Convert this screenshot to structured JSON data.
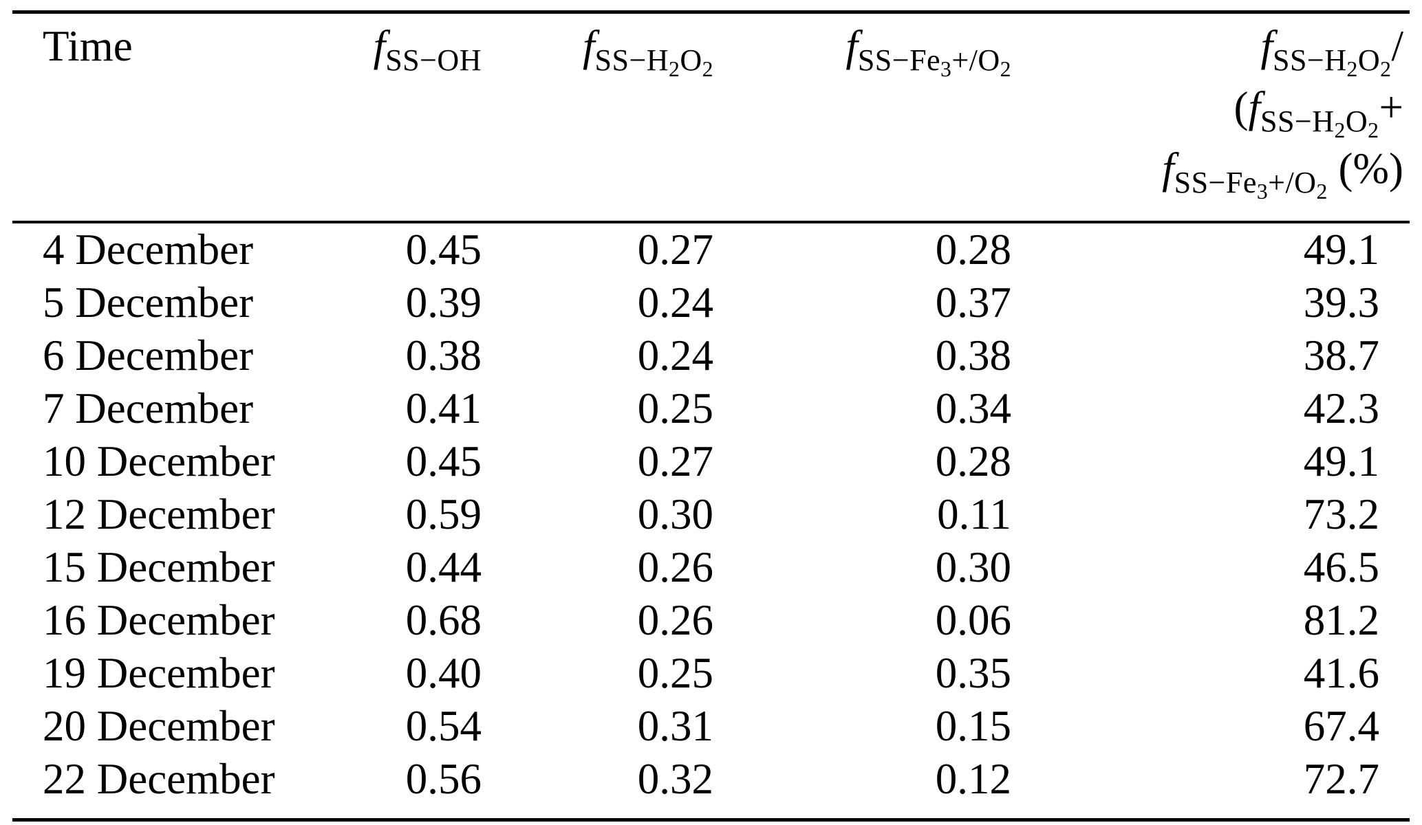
{
  "table": {
    "header": {
      "time": "Time",
      "f_oh": {
        "f": "f",
        "sub": "SS−OH"
      },
      "f_h2o2": {
        "f": "f",
        "sub_a": "SS−H",
        "sub_b": "2",
        "sub_c": "O",
        "sub_d": "2"
      },
      "f_fe": {
        "f": "f",
        "sub_a": "SS−Fe",
        "sub_b": "3",
        "sub_c": "+/O",
        "sub_d": "2"
      },
      "ratio": {
        "line1": {
          "f": "f",
          "sub_a": "SS−H",
          "sub_b": "2",
          "sub_c": "O",
          "sub_d": "2",
          "tail": "/"
        },
        "line2": {
          "lead": "(",
          "f": "f",
          "sub_a": "SS−H",
          "sub_b": "2",
          "sub_c": "O",
          "sub_d": "2",
          "tail": "+"
        },
        "line3": {
          "f": "f",
          "sub_a": "SS−Fe",
          "sub_b": "3",
          "sub_c": "+/O",
          "sub_d": "2",
          "tail": " (%)"
        }
      }
    },
    "rows": [
      {
        "time": "4 December",
        "f_oh": "0.45",
        "f_h2o2": "0.27",
        "f_fe": "0.28",
        "ratio": "49.1"
      },
      {
        "time": "5 December",
        "f_oh": "0.39",
        "f_h2o2": "0.24",
        "f_fe": "0.37",
        "ratio": "39.3"
      },
      {
        "time": "6 December",
        "f_oh": "0.38",
        "f_h2o2": "0.24",
        "f_fe": "0.38",
        "ratio": "38.7"
      },
      {
        "time": "7 December",
        "f_oh": "0.41",
        "f_h2o2": "0.25",
        "f_fe": "0.34",
        "ratio": "42.3"
      },
      {
        "time": "10 December",
        "f_oh": "0.45",
        "f_h2o2": "0.27",
        "f_fe": "0.28",
        "ratio": "49.1"
      },
      {
        "time": "12 December",
        "f_oh": "0.59",
        "f_h2o2": "0.30",
        "f_fe": "0.11",
        "ratio": "73.2"
      },
      {
        "time": "15 December",
        "f_oh": "0.44",
        "f_h2o2": "0.26",
        "f_fe": "0.30",
        "ratio": "46.5"
      },
      {
        "time": "16 December",
        "f_oh": "0.68",
        "f_h2o2": "0.26",
        "f_fe": "0.06",
        "ratio": "81.2"
      },
      {
        "time": "19 December",
        "f_oh": "0.40",
        "f_h2o2": "0.25",
        "f_fe": "0.35",
        "ratio": "41.6"
      },
      {
        "time": "20 December",
        "f_oh": "0.54",
        "f_h2o2": "0.31",
        "f_fe": "0.15",
        "ratio": "67.4"
      },
      {
        "time": "22 December",
        "f_oh": "0.56",
        "f_h2o2": "0.32",
        "f_fe": "0.12",
        "ratio": "72.7"
      }
    ]
  }
}
